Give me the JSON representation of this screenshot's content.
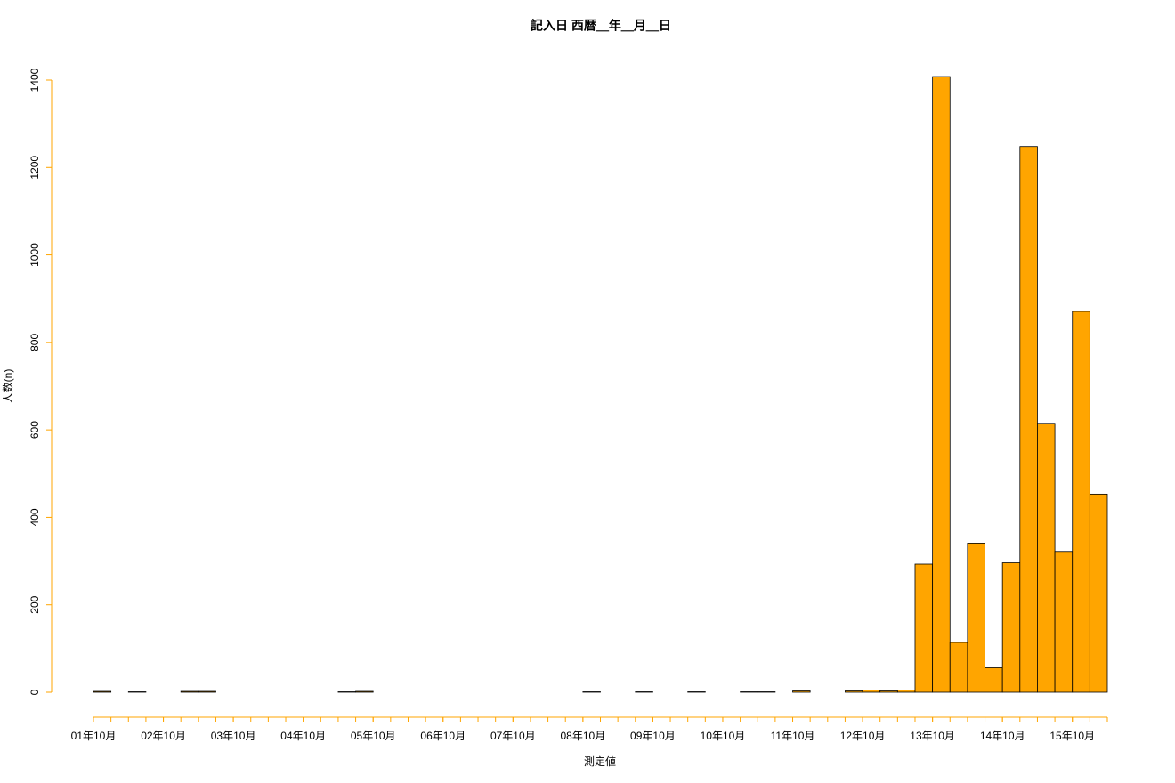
{
  "chart_data": {
    "type": "histogram",
    "title": "記入日 西暦＿年＿月＿日",
    "xlabel": "測定値",
    "ylabel": "人数(n)",
    "color": "#ffa500",
    "axis_color": "#ffa500",
    "bins": [
      0,
      1,
      2,
      3,
      4,
      5,
      6,
      7,
      8,
      9,
      10,
      11,
      12,
      13,
      14,
      15,
      16,
      17,
      18,
      19,
      20,
      21,
      22,
      23,
      24,
      25,
      26,
      27,
      28,
      29,
      30,
      31,
      32,
      33,
      34,
      35,
      36,
      37,
      38,
      39,
      40,
      41,
      42,
      43,
      44,
      45,
      46,
      47,
      48,
      49,
      50,
      51,
      52,
      53,
      54,
      55,
      56,
      57,
      58
    ],
    "values": [
      2,
      0,
      1,
      0,
      0,
      2,
      2,
      0,
      0,
      0,
      0,
      0,
      0,
      0,
      1,
      2,
      0,
      0,
      0,
      0,
      0,
      0,
      0,
      0,
      0,
      0,
      0,
      0,
      1,
      0,
      0,
      1,
      0,
      0,
      1,
      0,
      0,
      1,
      1,
      0,
      3,
      0,
      0,
      3,
      5,
      3,
      5,
      293,
      1408,
      114,
      341,
      56,
      296,
      1248,
      615,
      322,
      871,
      453
    ],
    "xlim": [
      0,
      58
    ],
    "xticks": [
      {
        "value": 0,
        "label": "01年10月"
      },
      {
        "value": 4,
        "label": "02年10月"
      },
      {
        "value": 8,
        "label": "03年10月"
      },
      {
        "value": 12,
        "label": "04年10月"
      },
      {
        "value": 16,
        "label": "05年10月"
      },
      {
        "value": 20,
        "label": "06年10月"
      },
      {
        "value": 24,
        "label": "07年10月"
      },
      {
        "value": 28,
        "label": "08年10月"
      },
      {
        "value": 32,
        "label": "09年10月"
      },
      {
        "value": 36,
        "label": "10年10月"
      },
      {
        "value": 40,
        "label": "11年10月"
      },
      {
        "value": 44,
        "label": "12年10月"
      },
      {
        "value": 48,
        "label": "13年10月"
      },
      {
        "value": 52,
        "label": "14年10月"
      },
      {
        "value": 56,
        "label": "15年10月"
      }
    ],
    "ylim": [
      0,
      1400
    ],
    "yticks": [
      0,
      200,
      400,
      600,
      800,
      1000,
      1200,
      1400
    ]
  }
}
